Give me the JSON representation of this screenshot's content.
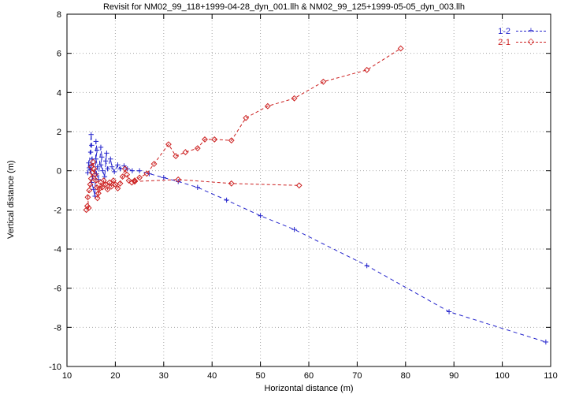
{
  "chart_data": {
    "type": "line",
    "title": "Revisit for NM02_99_118+1999-04-28_dyn_001.llh & NM02_99_125+1999-05-05_dyn_003.llh",
    "xlabel": "Horizontal distance (m)",
    "ylabel": "Vertical distance (m)",
    "xlim": [
      10,
      110
    ],
    "ylim": [
      -10,
      8
    ],
    "xtick_step": 10,
    "ytick_step": 2,
    "grid": true,
    "grid_color": "#a8a8a8",
    "border_color": "#000000",
    "background": "#ffffff",
    "legend_position": "top-right-inside",
    "series": [
      {
        "name": "1-2",
        "color": "#2424cc",
        "marker": "plus",
        "dash": "5,4",
        "segments": [
          [
            [
              14.5,
              0.4
            ],
            [
              14.3,
              -0.1
            ],
            [
              14.6,
              0.15
            ],
            [
              15.0,
              1.85
            ],
            [
              15.1,
              1.3
            ],
            [
              14.9,
              0.95
            ],
            [
              15.2,
              0.6
            ],
            [
              15.0,
              0.3
            ],
            [
              14.8,
              0.05
            ],
            [
              15.3,
              -0.3
            ],
            [
              15.1,
              -0.6
            ],
            [
              15.5,
              -0.95
            ],
            [
              15.8,
              -1.3
            ],
            [
              16.0,
              1.5
            ],
            [
              16.2,
              1.05
            ],
            [
              16.0,
              0.6
            ],
            [
              16.3,
              0.2
            ],
            [
              16.1,
              -0.15
            ],
            [
              16.5,
              -0.45
            ],
            [
              17.0,
              1.2
            ],
            [
              17.2,
              0.7
            ],
            [
              17.0,
              0.3
            ],
            [
              17.4,
              0.0
            ],
            [
              17.8,
              -0.3
            ],
            [
              18.2,
              0.9
            ],
            [
              18.0,
              0.5
            ],
            [
              18.4,
              0.1
            ],
            [
              19.0,
              0.6
            ],
            [
              19.3,
              0.2
            ],
            [
              19.8,
              -0.05
            ],
            [
              20.5,
              0.3
            ],
            [
              21.0,
              0.1
            ],
            [
              21.8,
              0.25
            ],
            [
              22.5,
              0.1
            ],
            [
              23.5,
              0.0
            ],
            [
              25.0,
              0.0
            ],
            [
              27.0,
              -0.15
            ],
            [
              30.0,
              -0.35
            ],
            [
              33.0,
              -0.55
            ],
            [
              37.0,
              -0.85
            ],
            [
              43.0,
              -1.5
            ],
            [
              50.0,
              -2.3
            ],
            [
              57.0,
              -3.0
            ],
            [
              72.0,
              -4.85
            ],
            [
              89.0,
              -7.2
            ],
            [
              109.0,
              -8.75
            ]
          ]
        ]
      },
      {
        "name": "2-1",
        "color": "#cc2020",
        "marker": "diamond",
        "dash": "4,3",
        "segments": [
          [
            [
              14.2,
              -1.8
            ],
            [
              14.0,
              -2.0
            ],
            [
              14.5,
              -1.9
            ],
            [
              14.3,
              -1.35
            ],
            [
              14.6,
              -1.0
            ],
            [
              14.8,
              -0.7
            ],
            [
              15.0,
              -0.4
            ],
            [
              15.2,
              -0.1
            ],
            [
              15.0,
              0.2
            ],
            [
              15.4,
              0.45
            ],
            [
              15.6,
              0.1
            ],
            [
              15.8,
              -0.2
            ],
            [
              16.0,
              -0.5
            ],
            [
              16.2,
              -0.85
            ],
            [
              16.5,
              -1.15
            ],
            [
              16.3,
              -1.4
            ],
            [
              16.8,
              -0.9
            ],
            [
              17.0,
              -0.6
            ],
            [
              17.3,
              -0.85
            ],
            [
              17.6,
              -0.5
            ],
            [
              18.0,
              -0.7
            ],
            [
              18.4,
              -0.95
            ],
            [
              18.8,
              -0.6
            ],
            [
              19.2,
              -0.8
            ],
            [
              19.6,
              -0.5
            ],
            [
              20.0,
              -0.7
            ],
            [
              20.5,
              -0.9
            ],
            [
              21.0,
              -0.65
            ],
            [
              21.5,
              -0.3
            ],
            [
              22.0,
              0.1
            ],
            [
              22.4,
              -0.2
            ],
            [
              22.8,
              -0.5
            ],
            [
              23.4,
              -0.6
            ],
            [
              24.0,
              -0.5
            ],
            [
              25.0,
              -0.35
            ],
            [
              26.5,
              -0.15
            ],
            [
              28.0,
              0.35
            ],
            [
              31.0,
              1.35
            ],
            [
              32.5,
              0.75
            ],
            [
              34.5,
              0.95
            ],
            [
              37.0,
              1.15
            ],
            [
              38.5,
              1.6
            ],
            [
              40.5,
              1.6
            ],
            [
              44.0,
              1.55
            ],
            [
              47.0,
              2.7
            ],
            [
              51.5,
              3.3
            ],
            [
              57.0,
              3.7
            ],
            [
              63.0,
              4.55
            ],
            [
              72.0,
              5.15
            ],
            [
              79.0,
              6.25
            ]
          ],
          [
            [
              24.0,
              -0.55
            ],
            [
              33.0,
              -0.45
            ],
            [
              44.0,
              -0.65
            ],
            [
              58.0,
              -0.75
            ]
          ]
        ]
      }
    ]
  }
}
